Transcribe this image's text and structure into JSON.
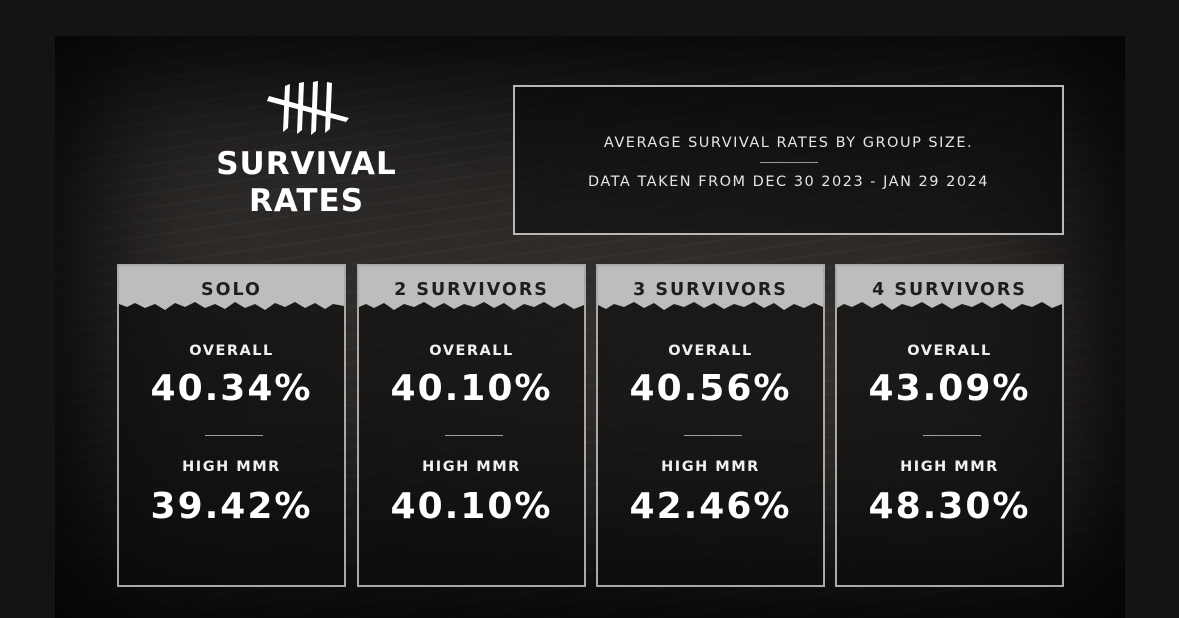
{
  "header": {
    "logo_icon": "claw-marks-icon",
    "title_line1": "SURVIVAL",
    "title_line2": "RATES"
  },
  "info": {
    "line1": "AVERAGE SURVIVAL RATES BY GROUP SIZE.",
    "line2": "DATA TAKEN FROM DEC 30 2023 - JAN 29 2024"
  },
  "cards": [
    {
      "title": "SOLO",
      "overall_label": "OVERALL",
      "overall": "40.34%",
      "high_label": "HIGH MMR",
      "high": "39.42%"
    },
    {
      "title": "2 SURVIVORS",
      "overall_label": "OVERALL",
      "overall": "40.10%",
      "high_label": "HIGH MMR",
      "high": "40.10%"
    },
    {
      "title": "3 SURVIVORS",
      "overall_label": "OVERALL",
      "overall": "40.56%",
      "high_label": "HIGH MMR",
      "high": "42.46%"
    },
    {
      "title": "4 SURVIVORS",
      "overall_label": "OVERALL",
      "overall": "43.09%",
      "high_label": "HIGH MMR",
      "high": "48.30%"
    }
  ],
  "colors": {
    "background": "#141414",
    "border": "#a9a9a9",
    "text": "#ffffff",
    "header_band": "#bdbdbd"
  }
}
